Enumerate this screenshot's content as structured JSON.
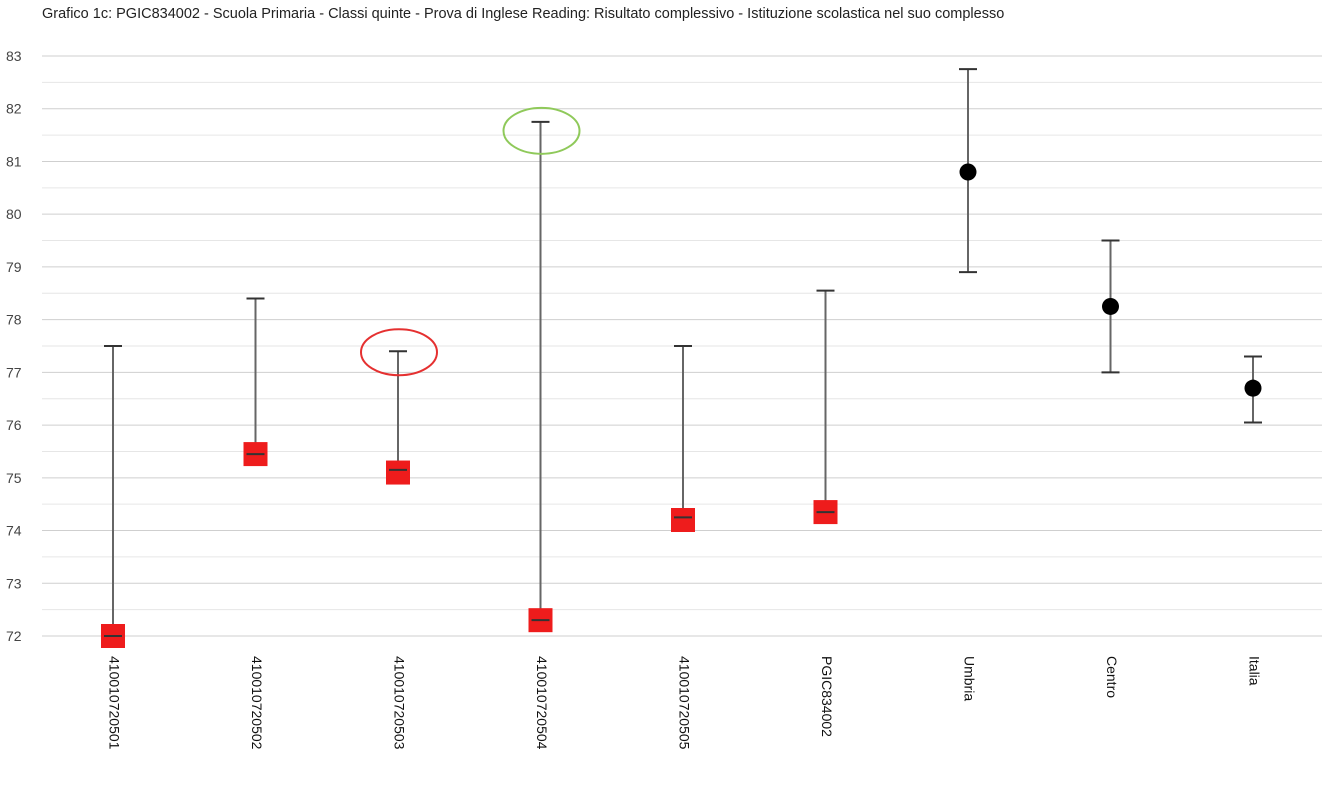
{
  "chart_data": {
    "type": "scatter",
    "title": "Grafico 1c: PGIC834002 - Scuola Primaria - Classi quinte - Prova di Inglese Reading: Risultato complessivo - Istituzione scolastica nel suo complesso",
    "xlabel": "",
    "ylabel": "",
    "ylim": [
      72,
      83
    ],
    "yticks": [
      72,
      73,
      74,
      75,
      76,
      77,
      78,
      79,
      80,
      81,
      82,
      83
    ],
    "grid": true,
    "legend": "none",
    "categories": [
      "410010720501",
      "410010720502",
      "410010720503",
      "410010720504",
      "410010720505",
      "PGIC834002",
      "Umbria",
      "Centro",
      "Italia"
    ],
    "points": [
      {
        "category": "410010720501",
        "value": 72.0,
        "low": 72.0,
        "high": 77.5,
        "marker": "square"
      },
      {
        "category": "410010720502",
        "value": 75.45,
        "low": 75.45,
        "high": 78.4,
        "marker": "square"
      },
      {
        "category": "410010720503",
        "value": 75.1,
        "low": 75.15,
        "high": 77.4,
        "marker": "square"
      },
      {
        "category": "410010720504",
        "value": 72.3,
        "low": 72.3,
        "high": 81.75,
        "marker": "square"
      },
      {
        "category": "410010720505",
        "value": 74.2,
        "low": 74.25,
        "high": 77.5,
        "marker": "square"
      },
      {
        "category": "PGIC834002",
        "value": 74.35,
        "low": 74.35,
        "high": 78.55,
        "marker": "square"
      },
      {
        "category": "Umbria",
        "value": 80.8,
        "low": 78.9,
        "high": 82.75,
        "marker": "circle"
      },
      {
        "category": "Centro",
        "value": 78.25,
        "low": 77.0,
        "high": 79.5,
        "marker": "circle"
      },
      {
        "category": "Italia",
        "value": 76.7,
        "low": 76.05,
        "high": 77.3,
        "marker": "circle"
      }
    ],
    "highlights": [
      {
        "category": "410010720503",
        "value": 77.4,
        "color": "#e53030"
      },
      {
        "category": "410010720504",
        "value": 81.6,
        "color": "#8fc95a"
      }
    ],
    "colors": {
      "square_marker": "#ee1c1c",
      "circle_marker": "#000000",
      "error_bar": "#666666",
      "grid": "#d0d0d0"
    }
  }
}
